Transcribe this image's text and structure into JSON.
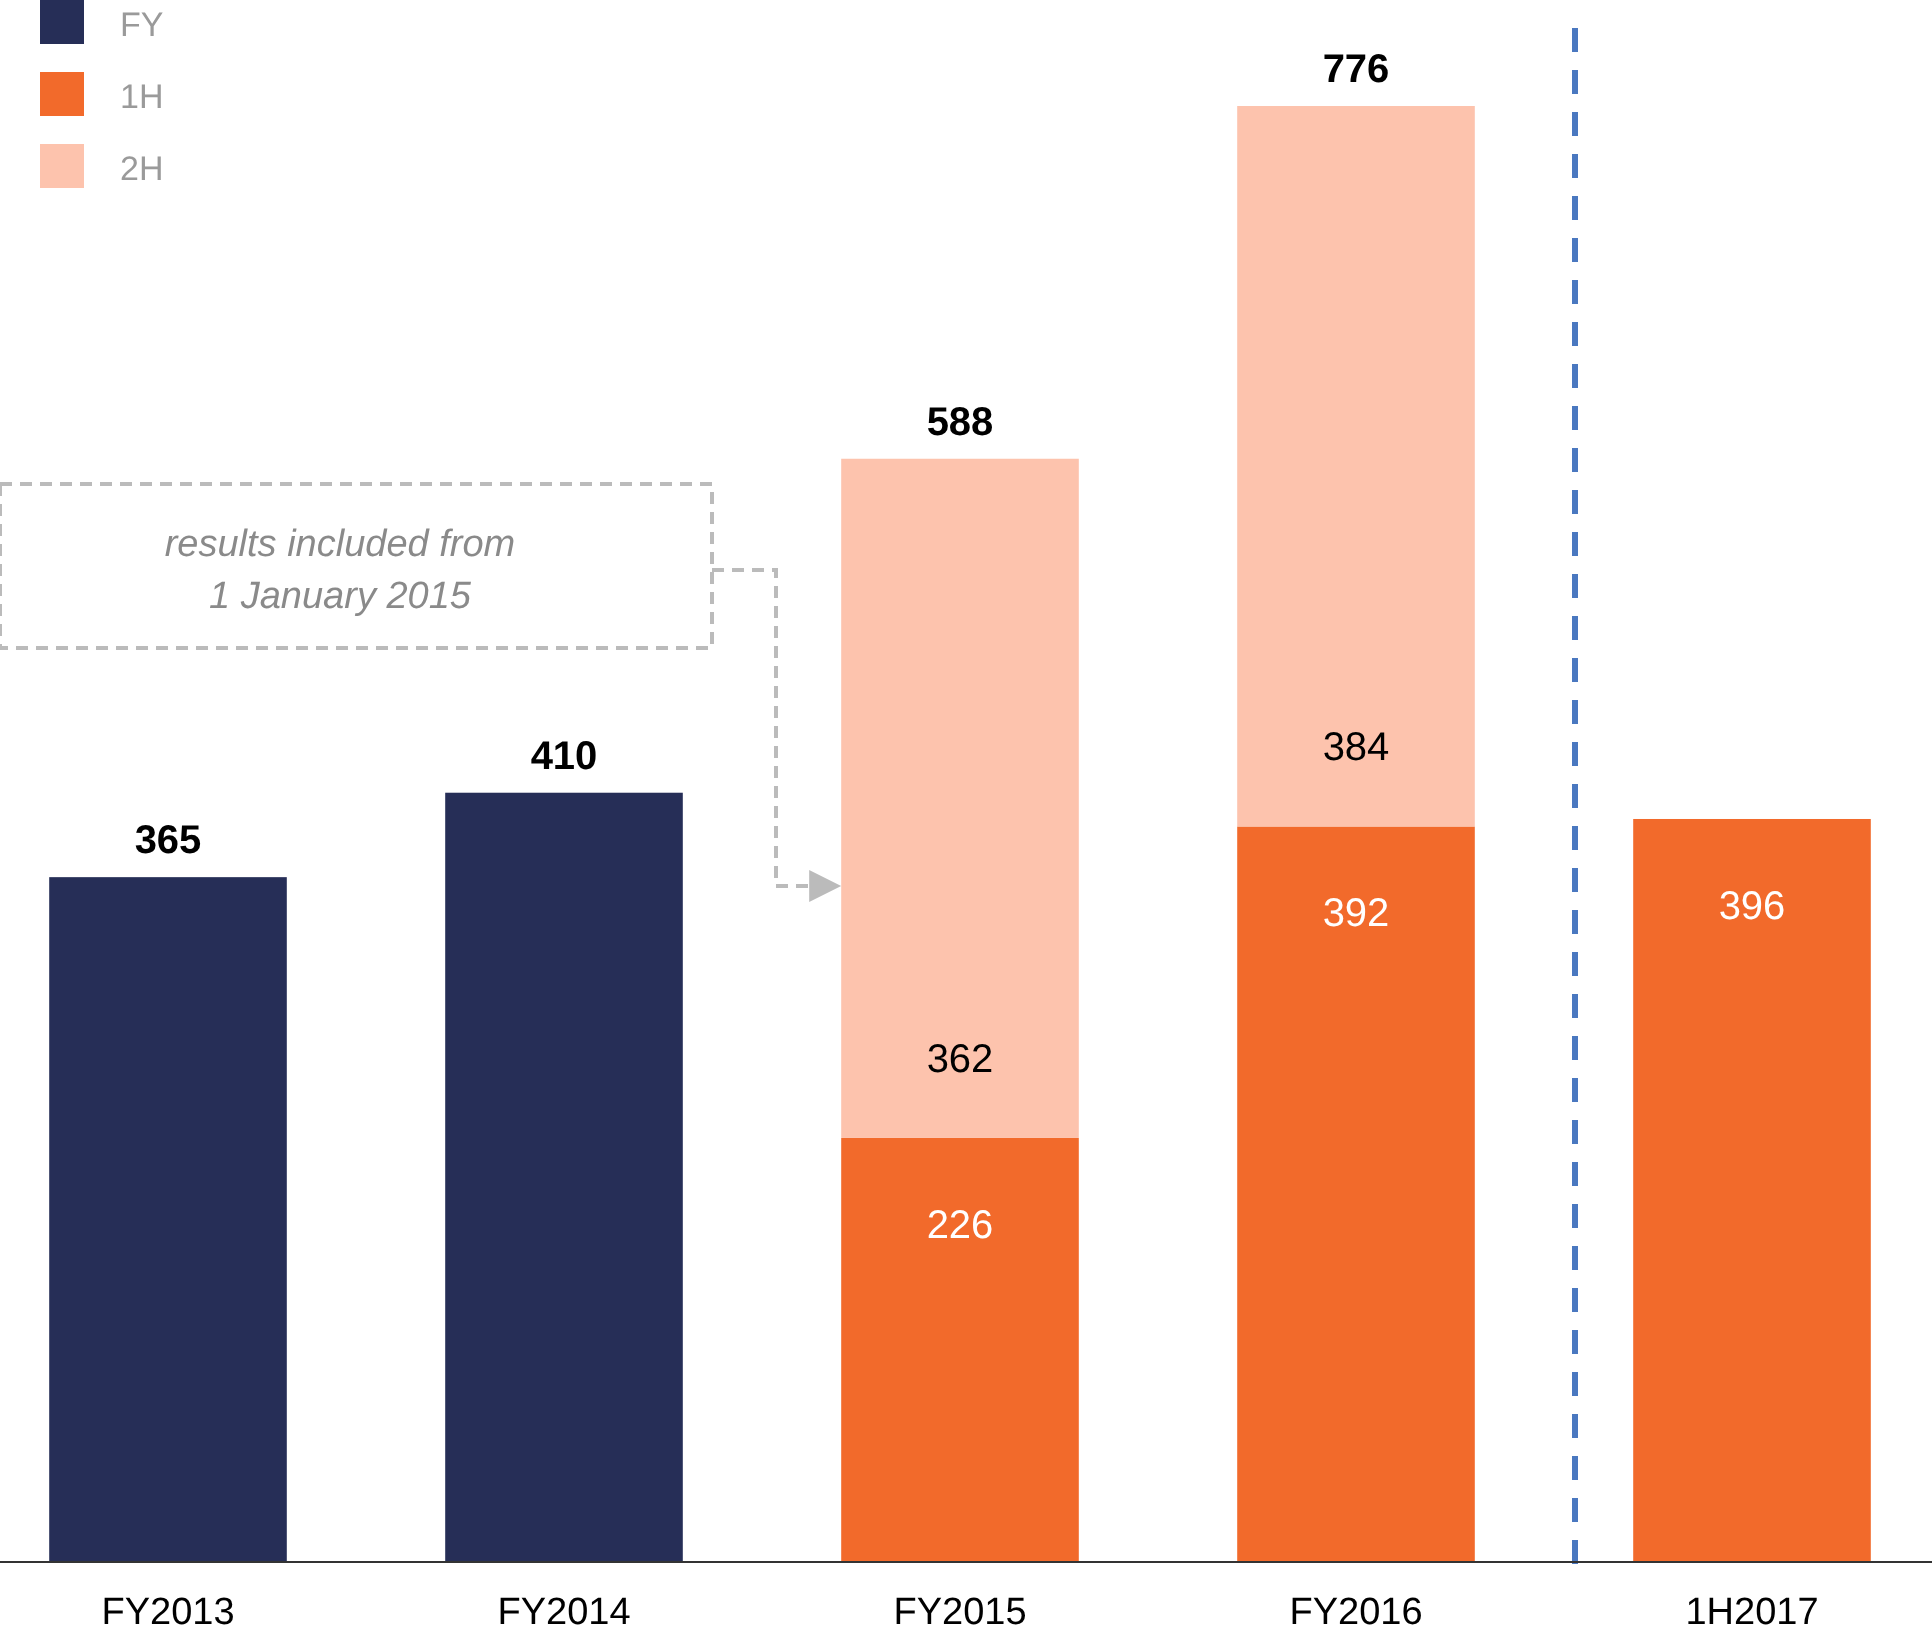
{
  "chart_data": {
    "type": "bar",
    "stacked": true,
    "categories": [
      "FY2013",
      "FY2014",
      "FY2015",
      "FY2016",
      "1H2017"
    ],
    "series": [
      {
        "name": "FY",
        "color": "#262e57",
        "values": [
          365,
          410,
          null,
          null,
          null
        ]
      },
      {
        "name": "1H",
        "color": "#f26a2b",
        "values": [
          null,
          null,
          226,
          392,
          396
        ]
      },
      {
        "name": "2H",
        "color": "#fdc3ad",
        "values": [
          null,
          null,
          362,
          384,
          null
        ]
      }
    ],
    "totals": [
      null,
      null,
      "588",
      "776",
      null
    ],
    "data_labels": true,
    "legend": "top left",
    "annotations": [
      "results included from 1 January 2015"
    ]
  }
}
